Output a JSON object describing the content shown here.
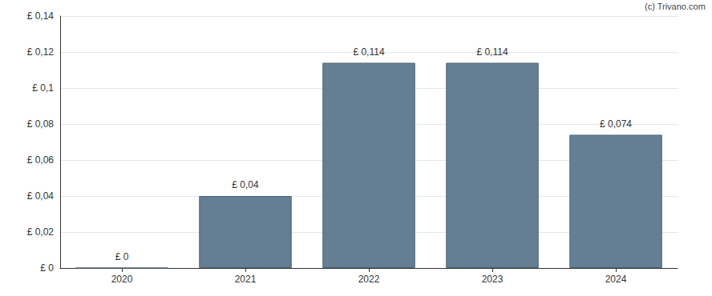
{
  "chart_data": {
    "type": "bar",
    "categories": [
      "2020",
      "2021",
      "2022",
      "2023",
      "2024"
    ],
    "values": [
      0,
      0.04,
      0.114,
      0.114,
      0.074
    ],
    "value_labels": [
      "£ 0",
      "£ 0,04",
      "£ 0,114",
      "£ 0,114",
      "£ 0,074"
    ],
    "data_labels": true,
    "color": "#647f94",
    "ylim": [
      0,
      0.14
    ],
    "yticks": [
      {
        "value": 0,
        "label": "£ 0"
      },
      {
        "value": 0.02,
        "label": "£ 0,02"
      },
      {
        "value": 0.04,
        "label": "£ 0,04"
      },
      {
        "value": 0.06,
        "label": "£ 0,06"
      },
      {
        "value": 0.08,
        "label": "£ 0,08"
      },
      {
        "value": 0.1,
        "label": "£ 0,1"
      },
      {
        "value": 0.12,
        "label": "£ 0,12"
      },
      {
        "value": 0.14,
        "label": "£ 0,14"
      }
    ],
    "grid": true,
    "annotations": [
      "(c) Trivano.com"
    ]
  }
}
